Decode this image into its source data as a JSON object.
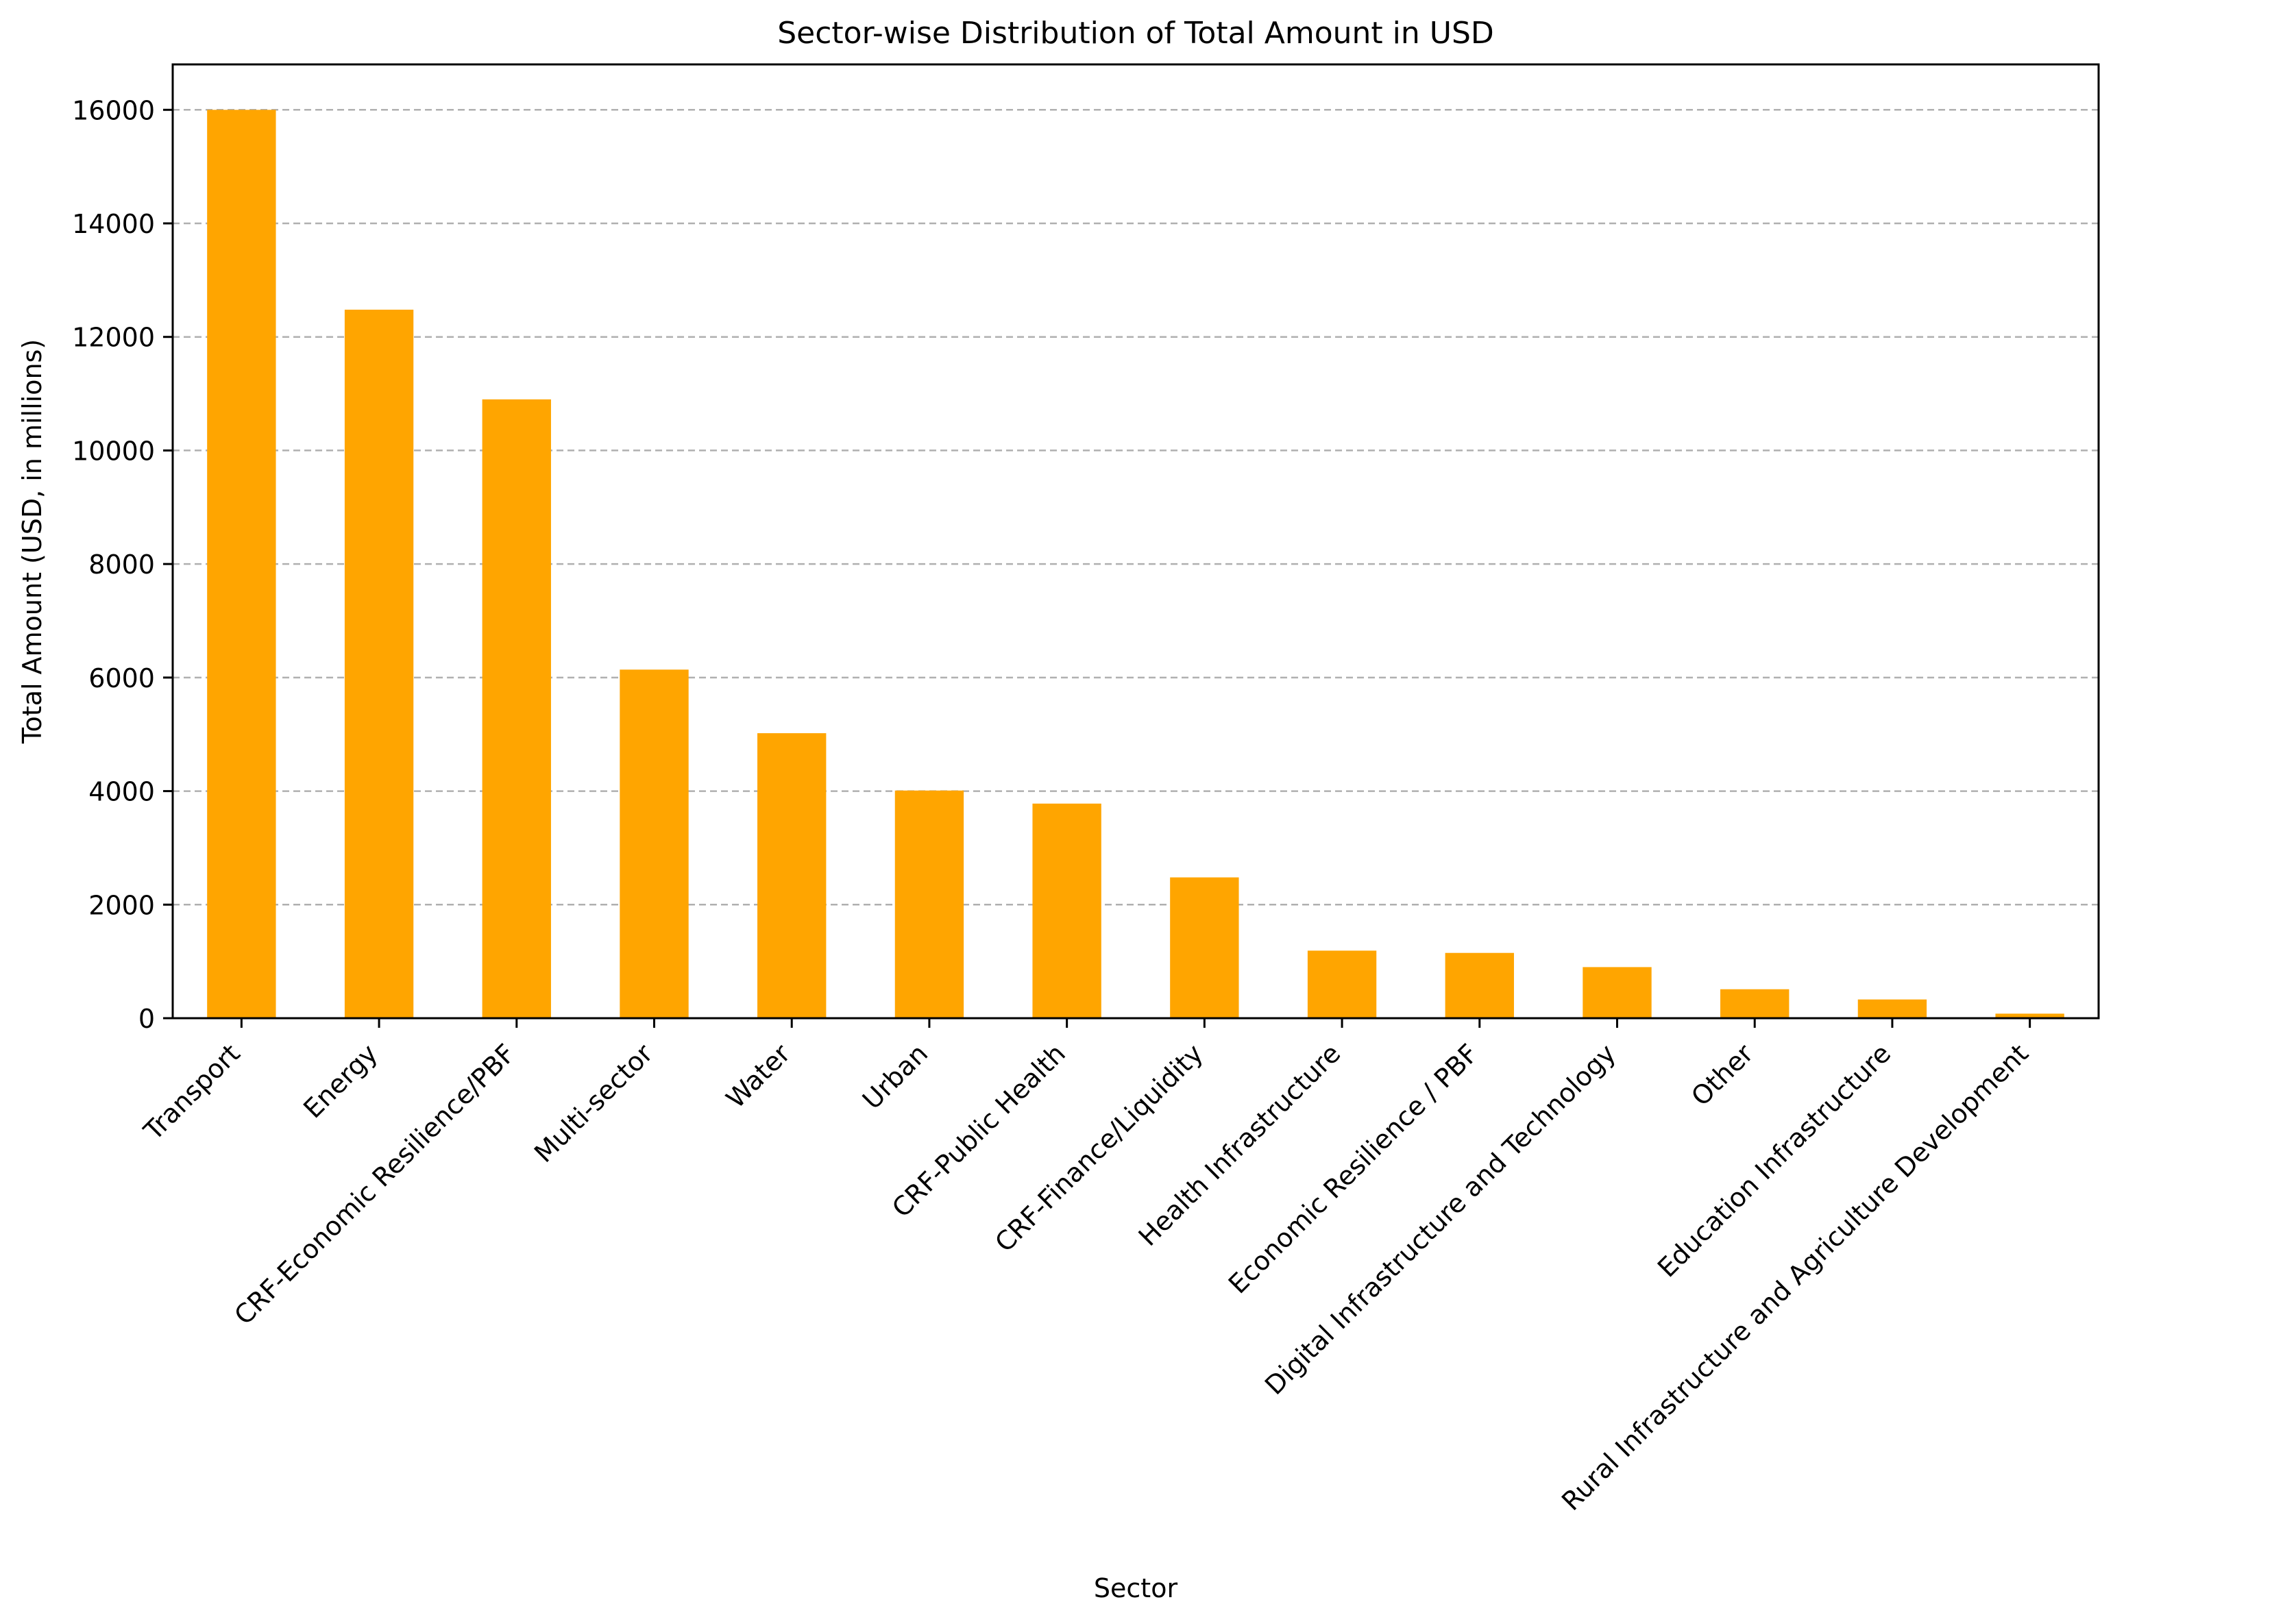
{
  "chart_data": {
    "type": "bar",
    "title": "Sector-wise Distribution of Total Amount in USD",
    "xlabel": "Sector",
    "ylabel": "Total Amount (USD, in millions)",
    "categories": [
      "Transport",
      "Energy",
      "CRF-Economic Resilience/PBF",
      "Multi-sector",
      "Water",
      "Urban",
      "CRF-Public Health",
      "CRF-Finance/Liquidity",
      "Health Infrastructure",
      "Economic Resilience / PBF",
      "Digital Infrastructure and Technology",
      "Other",
      "Education Infrastructure",
      "Rural Infrastructure and Agriculture Development"
    ],
    "values": [
      16000,
      12480,
      10900,
      6140,
      5020,
      4010,
      3780,
      2480,
      1190,
      1150,
      900,
      510,
      330,
      80
    ],
    "ylim": [
      0,
      16800
    ],
    "yticks": [
      0,
      2000,
      4000,
      6000,
      8000,
      10000,
      12000,
      14000,
      16000
    ],
    "grid": "y-dashed",
    "bar_color": "#FFA500"
  }
}
